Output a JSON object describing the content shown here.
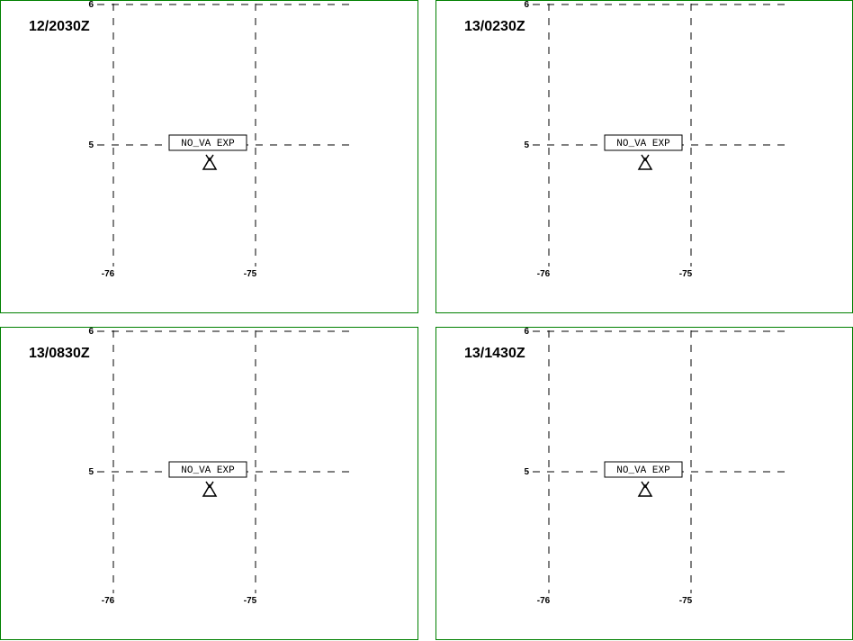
{
  "panels": [
    {
      "time": "12/2030Z",
      "lat_labels": [
        "6",
        "5"
      ],
      "lon_labels": [
        "-76",
        "-75"
      ],
      "box_label": "NO_VA EXP"
    },
    {
      "time": "13/0230Z",
      "lat_labels": [
        "6",
        "5"
      ],
      "lon_labels": [
        "-76",
        "-75"
      ],
      "box_label": "NO_VA EXP"
    },
    {
      "time": "13/0830Z",
      "lat_labels": [
        "6",
        "5"
      ],
      "lon_labels": [
        "-76",
        "-75"
      ],
      "box_label": "NO_VA EXP"
    },
    {
      "time": "13/1430Z",
      "lat_labels": [
        "6",
        "5"
      ],
      "lon_labels": [
        "-76",
        "-75"
      ],
      "box_label": "NO_VA EXP"
    }
  ]
}
